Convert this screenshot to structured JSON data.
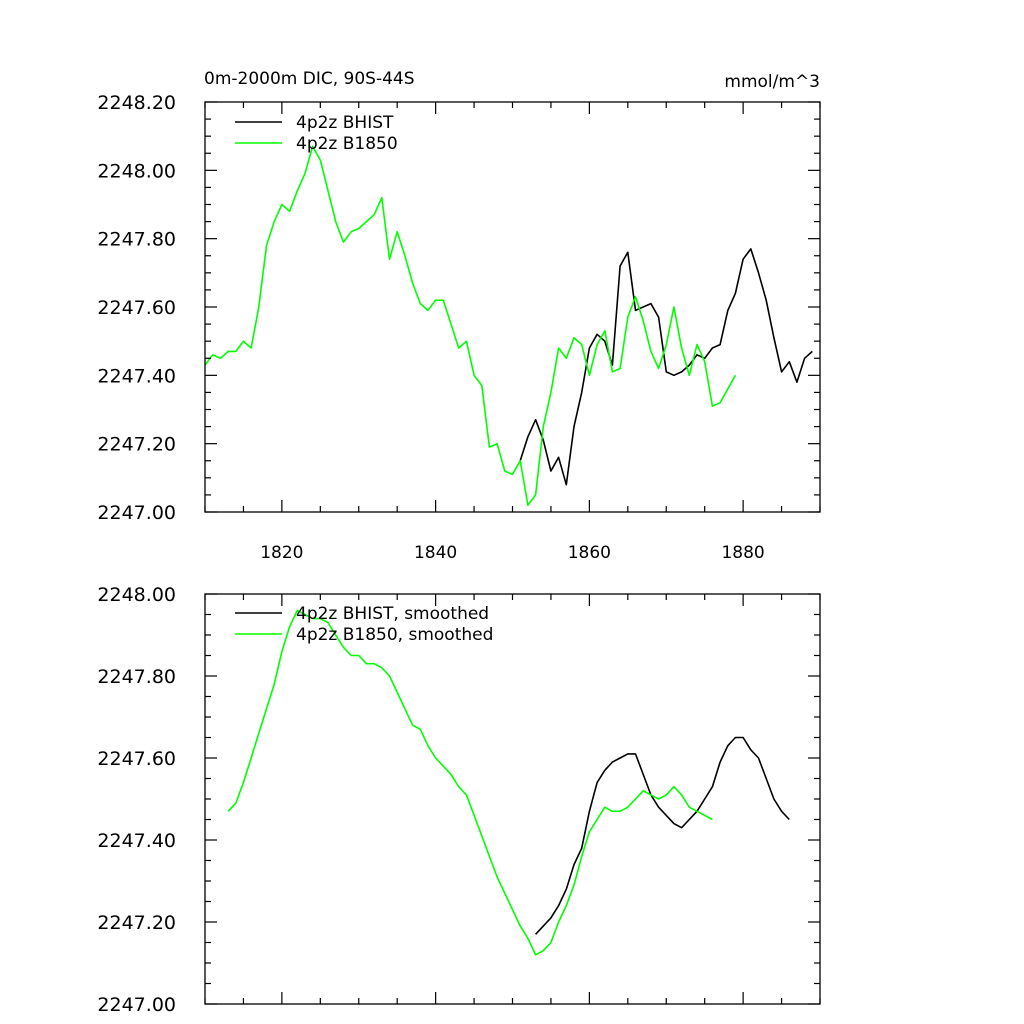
{
  "header": {
    "title": "0m-2000m DIC, 90S-44S",
    "units": "mmol/m^3"
  },
  "chart_data": [
    {
      "type": "line",
      "xlim": [
        1810,
        1890
      ],
      "ylim": [
        2247.0,
        2248.2
      ],
      "xticks": [
        1820,
        1840,
        1860,
        1880
      ],
      "xticklabels": [
        "1820",
        "1840",
        "1860",
        "1880"
      ],
      "yticks": [
        2247.0,
        2247.2,
        2247.4,
        2247.6,
        2247.8,
        2248.0,
        2248.2
      ],
      "yticklabels": [
        "2247.00",
        "2247.20",
        "2247.40",
        "2247.60",
        "2247.80",
        "2248.00",
        "2248.20"
      ],
      "legend_position": "top-left",
      "grid": false,
      "series": [
        {
          "name": "4p2z BHIST",
          "color": "#000000",
          "x": [
            1851,
            1852,
            1853,
            1854,
            1855,
            1856,
            1857,
            1858,
            1859,
            1860,
            1861,
            1862,
            1863,
            1864,
            1865,
            1866,
            1867,
            1868,
            1869,
            1870,
            1871,
            1872,
            1873,
            1874,
            1875,
            1876,
            1877,
            1878,
            1879,
            1880,
            1881,
            1882,
            1883,
            1884,
            1885,
            1886,
            1887,
            1888,
            1889
          ],
          "y": [
            2247.15,
            2247.22,
            2247.27,
            2247.21,
            2247.12,
            2247.16,
            2247.08,
            2247.25,
            2247.35,
            2247.48,
            2247.52,
            2247.5,
            2247.43,
            2247.72,
            2247.76,
            2247.59,
            2247.6,
            2247.61,
            2247.57,
            2247.41,
            2247.4,
            2247.41,
            2247.43,
            2247.46,
            2247.45,
            2247.48,
            2247.49,
            2247.59,
            2247.64,
            2247.74,
            2247.77,
            2247.7,
            2247.62,
            2247.51,
            2247.41,
            2247.44,
            2247.38,
            2247.45,
            2247.47
          ]
        },
        {
          "name": "4p2z B1850",
          "color": "#00ff00",
          "x": [
            1810,
            1811,
            1812,
            1813,
            1814,
            1815,
            1816,
            1817,
            1818,
            1819,
            1820,
            1821,
            1822,
            1823,
            1824,
            1825,
            1826,
            1827,
            1828,
            1829,
            1830,
            1831,
            1832,
            1833,
            1834,
            1835,
            1836,
            1837,
            1838,
            1839,
            1840,
            1841,
            1842,
            1843,
            1844,
            1845,
            1846,
            1847,
            1848,
            1849,
            1850,
            1851,
            1852,
            1853,
            1854,
            1855,
            1856,
            1857,
            1858,
            1859,
            1860,
            1861,
            1862,
            1863,
            1864,
            1865,
            1866,
            1867,
            1868,
            1869,
            1870,
            1871,
            1872,
            1873,
            1874,
            1875,
            1876,
            1877,
            1878,
            1879
          ],
          "y": [
            2247.43,
            2247.46,
            2247.45,
            2247.47,
            2247.47,
            2247.5,
            2247.48,
            2247.6,
            2247.78,
            2247.85,
            2247.9,
            2247.88,
            2247.94,
            2247.99,
            2248.07,
            2248.03,
            2247.94,
            2247.85,
            2247.79,
            2247.82,
            2247.83,
            2247.85,
            2247.87,
            2247.92,
            2247.74,
            2247.82,
            2247.75,
            2247.67,
            2247.61,
            2247.59,
            2247.62,
            2247.62,
            2247.55,
            2247.48,
            2247.5,
            2247.4,
            2247.37,
            2247.19,
            2247.2,
            2247.12,
            2247.11,
            2247.15,
            2247.02,
            2247.05,
            2247.25,
            2247.35,
            2247.48,
            2247.45,
            2247.51,
            2247.49,
            2247.4,
            2247.49,
            2247.53,
            2247.41,
            2247.42,
            2247.57,
            2247.63,
            2247.56,
            2247.47,
            2247.42,
            2247.49,
            2247.6,
            2247.48,
            2247.4,
            2247.49,
            2247.44,
            2247.31,
            2247.32,
            2247.36,
            2247.4
          ]
        }
      ]
    },
    {
      "type": "line",
      "xlim": [
        1810,
        1890
      ],
      "ylim": [
        2247.0,
        2248.0
      ],
      "xticks": [
        1820,
        1840,
        1860,
        1880
      ],
      "yticks": [
        2247.0,
        2247.2,
        2247.4,
        2247.6,
        2247.8,
        2248.0
      ],
      "yticklabels": [
        "2247.00",
        "2247.20",
        "2247.40",
        "2247.60",
        "2247.80",
        "2248.00"
      ],
      "legend_position": "top-left",
      "grid": false,
      "series": [
        {
          "name": "4p2z BHIST, smoothed",
          "color": "#000000",
          "x": [
            1853,
            1854,
            1855,
            1856,
            1857,
            1858,
            1859,
            1860,
            1861,
            1862,
            1863,
            1864,
            1865,
            1866,
            1867,
            1868,
            1869,
            1870,
            1871,
            1872,
            1873,
            1874,
            1875,
            1876,
            1877,
            1878,
            1879,
            1880,
            1881,
            1882,
            1883,
            1884,
            1885,
            1886
          ],
          "y": [
            2247.17,
            2247.19,
            2247.21,
            2247.24,
            2247.28,
            2247.34,
            2247.38,
            2247.47,
            2247.54,
            2247.57,
            2247.59,
            2247.6,
            2247.61,
            2247.61,
            2247.56,
            2247.51,
            2247.48,
            2247.46,
            2247.44,
            2247.43,
            2247.45,
            2247.47,
            2247.5,
            2247.53,
            2247.59,
            2247.63,
            2247.65,
            2247.65,
            2247.62,
            2247.6,
            2247.55,
            2247.5,
            2247.47,
            2247.45
          ]
        },
        {
          "name": "4p2z B1850, smoothed",
          "color": "#00ff00",
          "x": [
            1813,
            1814,
            1815,
            1816,
            1817,
            1818,
            1819,
            1820,
            1821,
            1822,
            1823,
            1824,
            1825,
            1826,
            1827,
            1828,
            1829,
            1830,
            1831,
            1832,
            1833,
            1834,
            1835,
            1836,
            1837,
            1838,
            1839,
            1840,
            1841,
            1842,
            1843,
            1844,
            1845,
            1846,
            1847,
            1848,
            1849,
            1850,
            1851,
            1852,
            1853,
            1854,
            1855,
            1856,
            1857,
            1858,
            1859,
            1860,
            1861,
            1862,
            1863,
            1864,
            1865,
            1866,
            1867,
            1868,
            1869,
            1870,
            1871,
            1872,
            1873,
            1874,
            1875,
            1876
          ],
          "y": [
            2247.47,
            2247.49,
            2247.54,
            2247.6,
            2247.66,
            2247.72,
            2247.78,
            2247.86,
            2247.92,
            2247.96,
            2247.95,
            2247.94,
            2247.94,
            2247.93,
            2247.9,
            2247.87,
            2247.85,
            2247.85,
            2247.83,
            2247.83,
            2247.82,
            2247.8,
            2247.76,
            2247.72,
            2247.68,
            2247.67,
            2247.63,
            2247.6,
            2247.58,
            2247.56,
            2247.53,
            2247.51,
            2247.46,
            2247.41,
            2247.36,
            2247.31,
            2247.27,
            2247.23,
            2247.19,
            2247.16,
            2247.12,
            2247.13,
            2247.15,
            2247.2,
            2247.24,
            2247.29,
            2247.36,
            2247.42,
            2247.45,
            2247.48,
            2247.47,
            2247.47,
            2247.48,
            2247.5,
            2247.52,
            2247.51,
            2247.5,
            2247.51,
            2247.53,
            2247.51,
            2247.48,
            2247.47,
            2247.46,
            2247.45
          ]
        }
      ]
    }
  ]
}
